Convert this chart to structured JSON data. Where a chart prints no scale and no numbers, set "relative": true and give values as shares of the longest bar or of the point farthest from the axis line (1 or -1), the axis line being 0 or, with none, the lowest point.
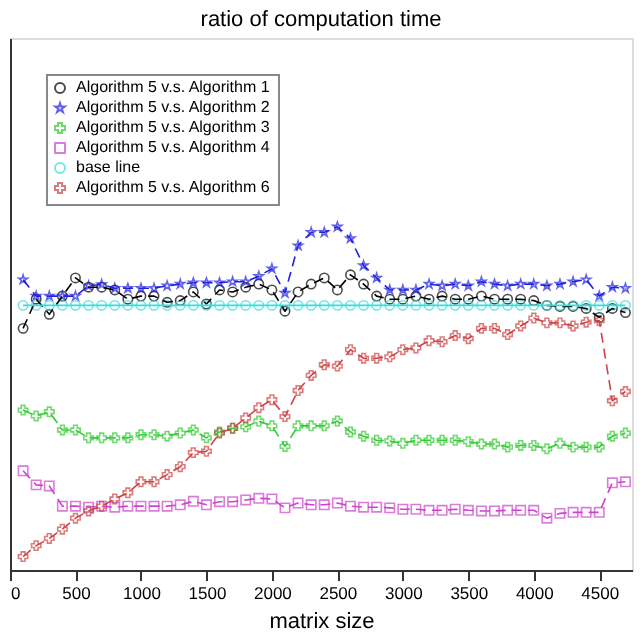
{
  "chart_data": {
    "type": "line",
    "title": "ratio of computation time",
    "xlabel": "matrix size",
    "relative": true,
    "xlim": [
      0,
      4750
    ],
    "xticks": [
      0,
      500,
      1000,
      1500,
      2000,
      2500,
      3000,
      3500,
      4000,
      4500
    ],
    "tick_labels": "x",
    "legend": "top left",
    "line_style": "dashed",
    "x": [
      100,
      200,
      300,
      400,
      500,
      600,
      700,
      800,
      900,
      1000,
      1100,
      1200,
      1300,
      1400,
      1500,
      1600,
      1700,
      1800,
      1900,
      2000,
      2100,
      2200,
      2300,
      2400,
      2500,
      2600,
      2700,
      2800,
      2900,
      3000,
      3100,
      3200,
      3300,
      3400,
      3500,
      3600,
      3700,
      3800,
      3900,
      4000,
      4100,
      4200,
      4300,
      4400,
      4500,
      4600,
      4700
    ],
    "series": [
      {
        "name": "Algorithm 5 v.s. Algorithm 1",
        "color": "#000000",
        "marker": "circle",
        "values": [
          0.704,
          0.789,
          0.745,
          0.798,
          0.851,
          0.824,
          0.824,
          0.816,
          0.789,
          0.798,
          0.798,
          0.78,
          0.785,
          0.81,
          0.775,
          0.816,
          0.81,
          0.824,
          0.833,
          0.816,
          0.754,
          0.81,
          0.833,
          0.851,
          0.816,
          0.86,
          0.833,
          0.798,
          0.789,
          0.789,
          0.798,
          0.789,
          0.798,
          0.789,
          0.789,
          0.798,
          0.789,
          0.789,
          0.789,
          0.785,
          0.771,
          0.768,
          0.768,
          0.762,
          0.736,
          0.762,
          0.75
        ]
      },
      {
        "name": "Algorithm 5 v.s. Algorithm 2",
        "color": "#2020e0",
        "marker": "star",
        "values": [
          0.846,
          0.798,
          0.798,
          0.798,
          0.798,
          0.828,
          0.832,
          0.821,
          0.821,
          0.821,
          0.821,
          0.828,
          0.833,
          0.837,
          0.837,
          0.837,
          0.84,
          0.84,
          0.856,
          0.878,
          0.807,
          0.945,
          0.984,
          0.984,
          1.0,
          0.966,
          0.887,
          0.851,
          0.816,
          0.816,
          0.816,
          0.833,
          0.828,
          0.833,
          0.828,
          0.84,
          0.833,
          0.828,
          0.833,
          0.833,
          0.828,
          0.833,
          0.84,
          0.846,
          0.798,
          0.824,
          0.821
        ]
      },
      {
        "name": "Algorithm 5 v.s. Algorithm 3",
        "color": "#33cc33",
        "marker": "cross",
        "values": [
          0.466,
          0.449,
          0.461,
          0.408,
          0.408,
          0.385,
          0.385,
          0.385,
          0.385,
          0.394,
          0.394,
          0.39,
          0.399,
          0.408,
          0.385,
          0.402,
          0.413,
          0.417,
          0.434,
          0.42,
          0.36,
          0.42,
          0.42,
          0.42,
          0.434,
          0.402,
          0.39,
          0.378,
          0.376,
          0.369,
          0.378,
          0.378,
          0.378,
          0.378,
          0.374,
          0.367,
          0.367,
          0.358,
          0.363,
          0.363,
          0.353,
          0.369,
          0.358,
          0.358,
          0.358,
          0.39,
          0.399
        ]
      },
      {
        "name": "Algorithm 5 v.s. Algorithm 4",
        "color": "#cc44cc",
        "marker": "square",
        "values": [
          0.289,
          0.248,
          0.245,
          0.186,
          0.186,
          0.183,
          0.186,
          0.183,
          0.186,
          0.186,
          0.186,
          0.186,
          0.19,
          0.2,
          0.19,
          0.199,
          0.199,
          0.204,
          0.209,
          0.207,
          0.181,
          0.195,
          0.19,
          0.19,
          0.195,
          0.186,
          0.183,
          0.183,
          0.181,
          0.177,
          0.177,
          0.174,
          0.174,
          0.177,
          0.174,
          0.172,
          0.172,
          0.174,
          0.174,
          0.174,
          0.151,
          0.165,
          0.168,
          0.168,
          0.168,
          0.254,
          0.257
        ]
      },
      {
        "name": "base line",
        "color": "#33dddd",
        "marker": "circle",
        "line_style": "solid",
        "values": [
          0.771,
          0.771,
          0.771,
          0.771,
          0.771,
          0.771,
          0.771,
          0.771,
          0.771,
          0.771,
          0.771,
          0.771,
          0.771,
          0.771,
          0.771,
          0.771,
          0.771,
          0.771,
          0.771,
          0.771,
          0.771,
          0.771,
          0.771,
          0.771,
          0.771,
          0.771,
          0.771,
          0.771,
          0.771,
          0.771,
          0.771,
          0.771,
          0.771,
          0.771,
          0.771,
          0.771,
          0.771,
          0.771,
          0.771,
          0.771,
          0.771,
          0.771,
          0.771,
          0.771,
          0.771,
          0.771,
          0.771
        ]
      },
      {
        "name": "Algorithm 5 v.s. Algorithm 6",
        "color": "#cc4444",
        "marker": "cross",
        "values": [
          0.039,
          0.071,
          0.092,
          0.119,
          0.151,
          0.172,
          0.186,
          0.207,
          0.225,
          0.257,
          0.257,
          0.278,
          0.301,
          0.342,
          0.346,
          0.399,
          0.413,
          0.443,
          0.473,
          0.496,
          0.447,
          0.523,
          0.567,
          0.598,
          0.594,
          0.642,
          0.617,
          0.617,
          0.621,
          0.642,
          0.647,
          0.668,
          0.665,
          0.683,
          0.674,
          0.704,
          0.704,
          0.686,
          0.711,
          0.734,
          0.72,
          0.72,
          0.711,
          0.722,
          0.727,
          0.493,
          0.52
        ]
      }
    ]
  }
}
